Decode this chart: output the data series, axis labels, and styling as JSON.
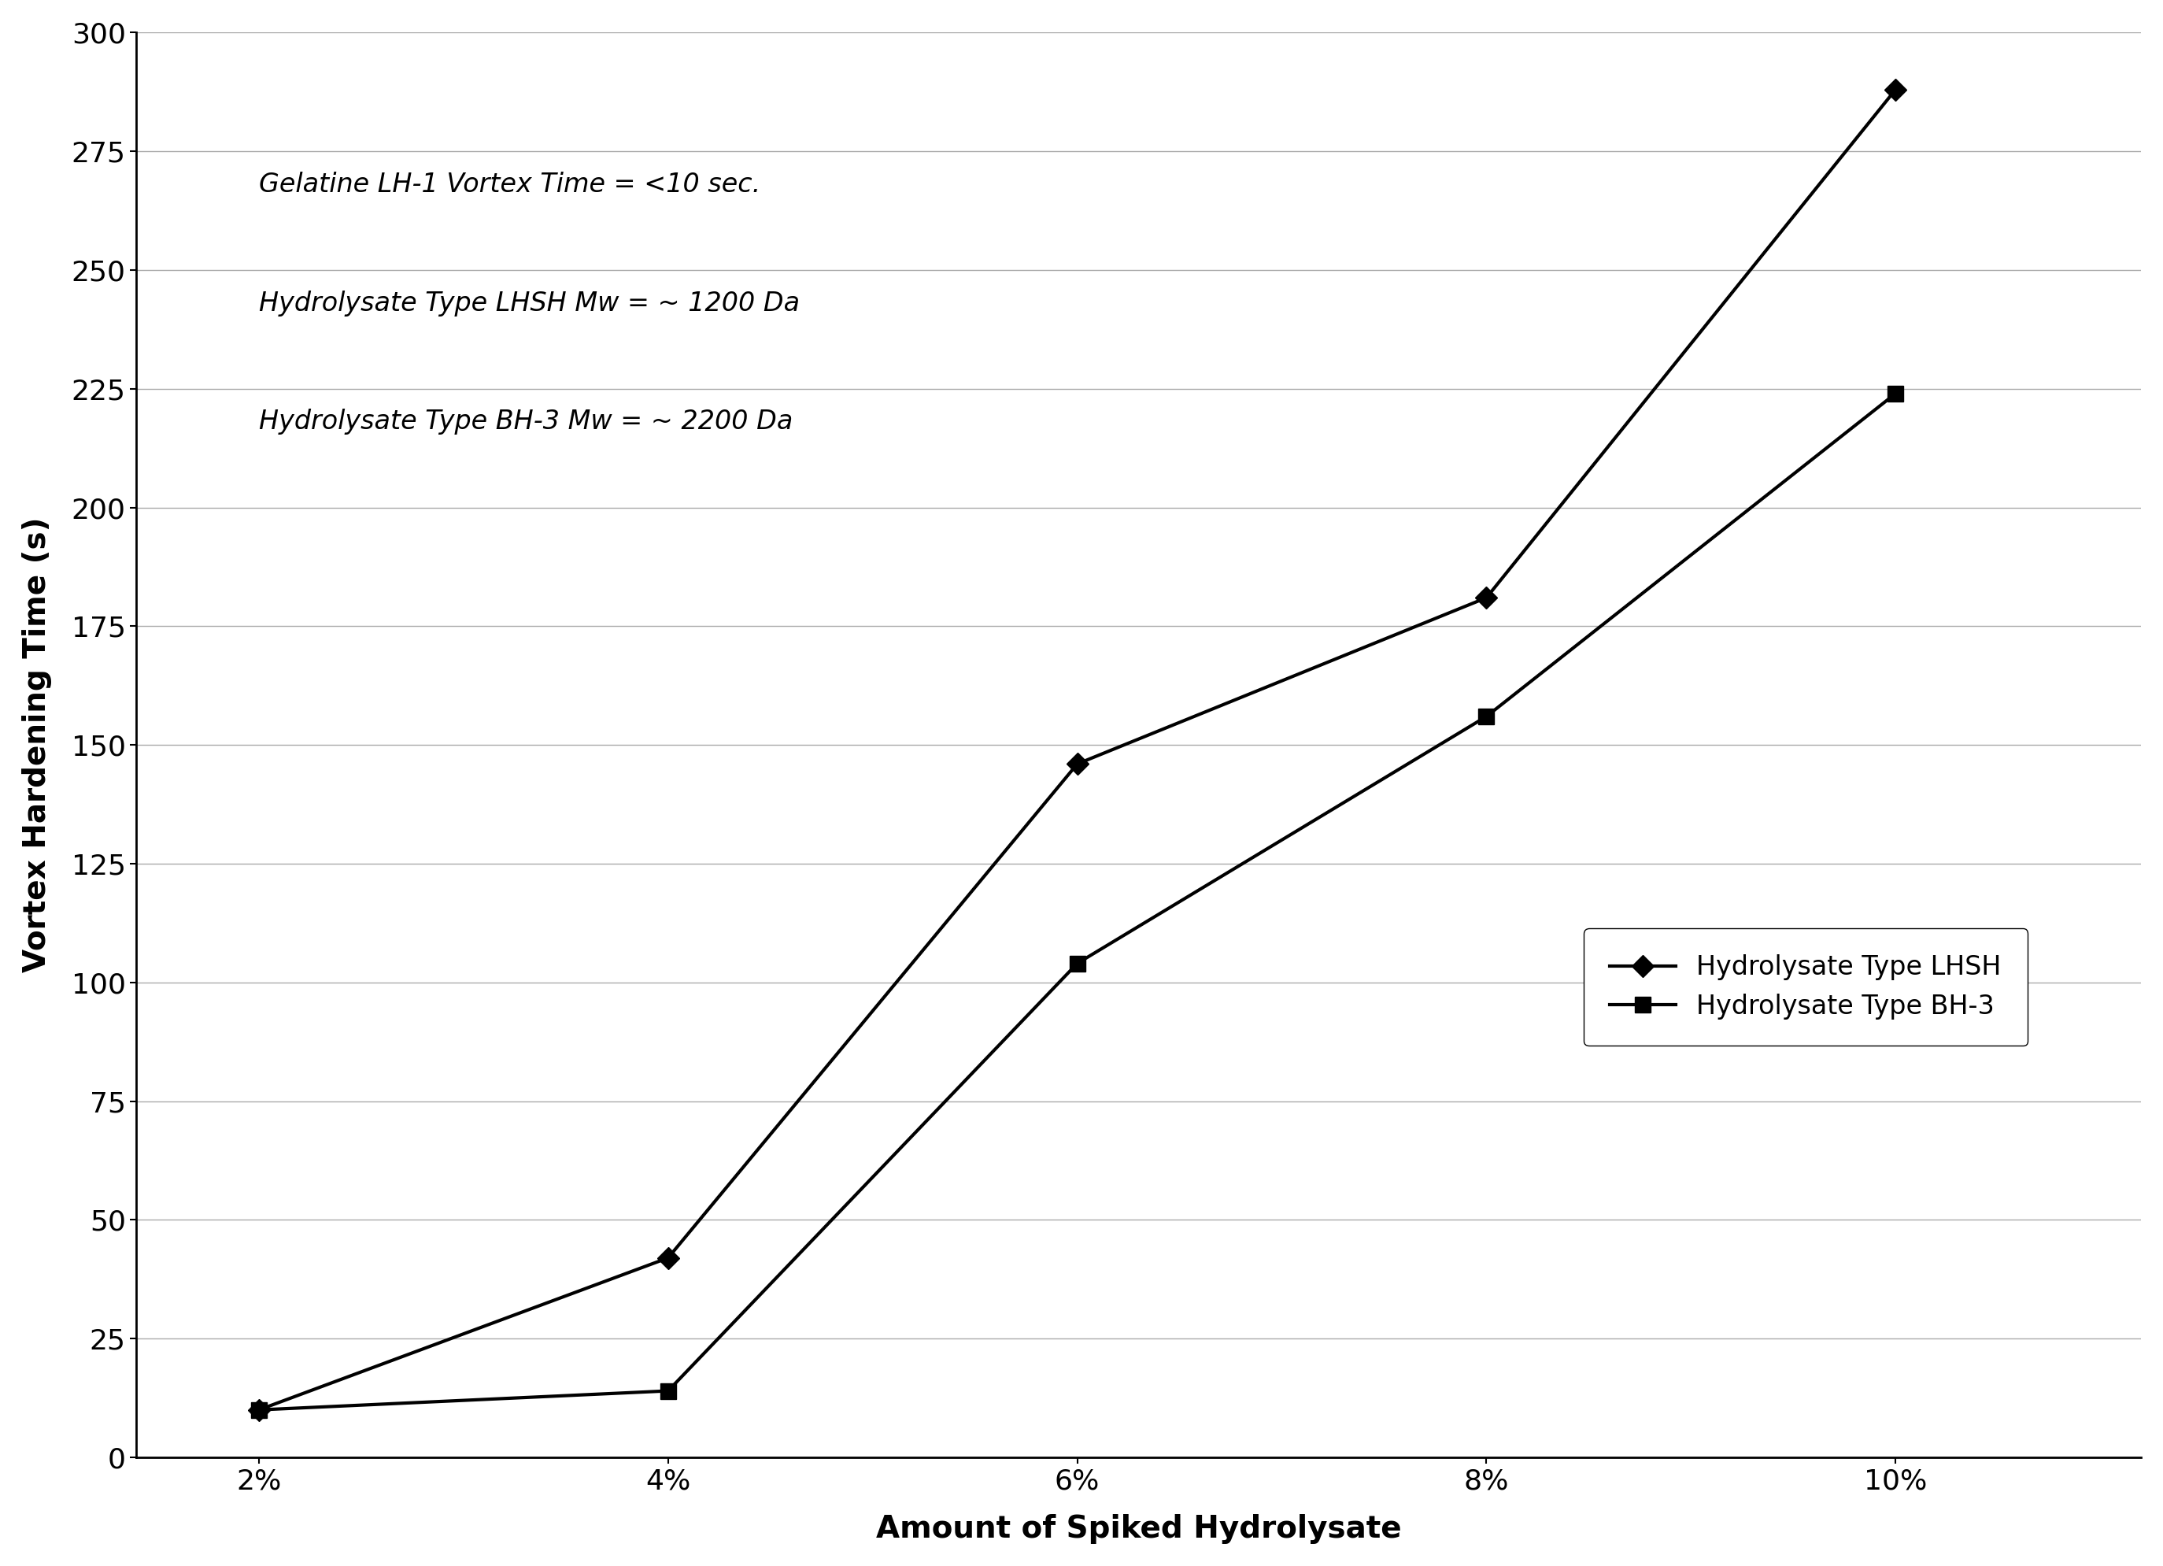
{
  "x_labels": [
    "2%",
    "4%",
    "6%",
    "8%",
    "10%"
  ],
  "x_values": [
    2,
    4,
    6,
    8,
    10
  ],
  "lhsh_values": [
    10,
    42,
    146,
    181,
    288
  ],
  "bh3_values": [
    10,
    14,
    104,
    156,
    224
  ],
  "ylabel": "Vortex Hardening Time (s)",
  "xlabel": "Amount of Spiked Hydrolysate",
  "ylim": [
    0,
    300
  ],
  "yticks": [
    0,
    25,
    50,
    75,
    100,
    125,
    150,
    175,
    200,
    225,
    250,
    275,
    300
  ],
  "annotation1": "Gelatine LH-1 Vortex Time = <10 sec.",
  "annotation2": "Hydrolysate Type LHSH Mw = ~ 1200 Da",
  "annotation3": "Hydrolysate Type BH-3 Mw = ~ 2200 Da",
  "legend_lhsh": "Hydrolysate Type LHSH",
  "legend_bh3": "Hydrolysate Type BH-3",
  "line_color": "#000000",
  "background_color": "#ffffff",
  "grid_color": "#aaaaaa",
  "label_fontsize": 28,
  "tick_fontsize": 26,
  "annotation_fontsize": 24,
  "legend_fontsize": 24,
  "xlim": [
    1.4,
    11.2
  ]
}
